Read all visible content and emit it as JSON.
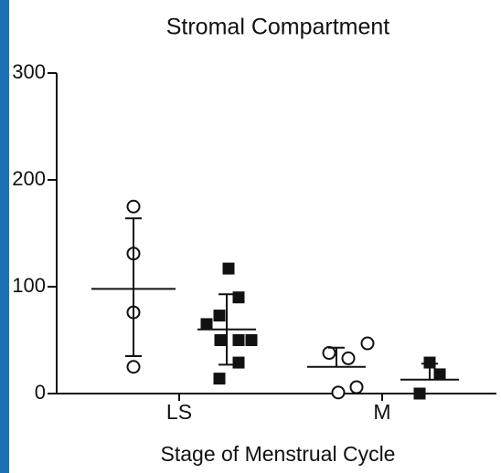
{
  "chart_data": {
    "type": "dot-plot",
    "title": "Stromal Compartment",
    "x_label": "Stage of Menstrual Cycle",
    "categories": [
      "LS",
      "M"
    ],
    "ylim": [
      0,
      300
    ],
    "yticks": [
      0,
      100,
      200,
      300
    ],
    "series": [
      {
        "marker": "circle",
        "color": "#111111",
        "values": [
          [
            175,
            131,
            76,
            25
          ],
          [
            38,
            33,
            47,
            1,
            6
          ]
        ],
        "means": [
          98,
          25
        ],
        "sd_high": [
          164,
          43
        ],
        "sd_low": [
          35,
          null
        ]
      },
      {
        "marker": "square",
        "color": "#111111",
        "values": [
          [
            117,
            90,
            65,
            73,
            50,
            50,
            50,
            29,
            14
          ],
          [
            29,
            18,
            0
          ]
        ],
        "means": [
          60,
          13
        ],
        "sd_high": [
          93,
          28
        ],
        "sd_low": [
          27,
          null
        ]
      }
    ]
  }
}
